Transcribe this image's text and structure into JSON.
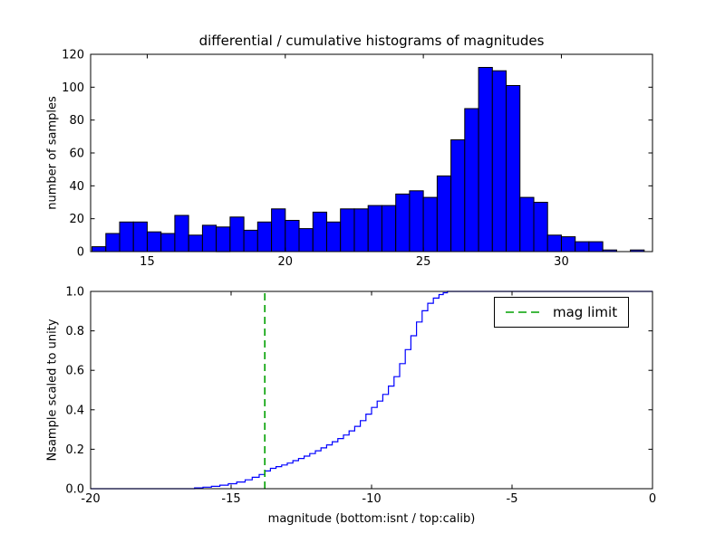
{
  "figure": {
    "title": "differential / cumulative histograms of magnitudes",
    "background": "#ffffff"
  },
  "chart_data": [
    {
      "type": "bar",
      "name": "differential-histogram",
      "ylabel": "number of samples",
      "bar_color": "#0000ff",
      "bar_edge_color": "#000000",
      "xlim": [
        12.95,
        33.3
      ],
      "ylim": [
        0,
        120
      ],
      "xticks": [
        15,
        20,
        25,
        30
      ],
      "xtick_labels": [
        "15",
        "20",
        "25",
        "30"
      ],
      "yticks": [
        0,
        20,
        40,
        60,
        80,
        100,
        120
      ],
      "ytick_labels": [
        "0",
        "20",
        "40",
        "60",
        "80",
        "100",
        "120"
      ],
      "bin_start": 13.0,
      "bin_width": 0.5,
      "values": [
        3,
        11,
        18,
        18,
        12,
        11,
        22,
        10,
        16,
        15,
        21,
        13,
        18,
        26,
        19,
        14,
        24,
        18,
        26,
        26,
        28,
        28,
        35,
        37,
        33,
        46,
        68,
        87,
        112,
        110,
        101,
        33,
        30,
        10,
        9,
        6,
        6,
        1,
        0,
        1
      ]
    },
    {
      "type": "line",
      "name": "cumulative-histogram",
      "ylabel": "Nsample scaled to unity",
      "xlabel": "magnitude (bottom:isnt / top:calib)",
      "line_color": "#0000ff",
      "step": true,
      "xlim": [
        -20,
        0
      ],
      "ylim": [
        0,
        1
      ],
      "xticks": [
        -20,
        -15,
        -10,
        -5,
        0
      ],
      "xtick_labels": [
        "-20",
        "-15",
        "-10",
        "-5",
        "0"
      ],
      "yticks": [
        0,
        0.2,
        0.4,
        0.6,
        0.8,
        1.0
      ],
      "ytick_labels": [
        "0.0",
        "0.2",
        "0.4",
        "0.6",
        "0.8",
        "1.0"
      ],
      "points": [
        [
          -20,
          0
        ],
        [
          -16.6,
          0
        ],
        [
          -16.3,
          0.004
        ],
        [
          -16.0,
          0.008
        ],
        [
          -15.7,
          0.012
        ],
        [
          -15.4,
          0.018
        ],
        [
          -15.1,
          0.025
        ],
        [
          -14.8,
          0.034
        ],
        [
          -14.5,
          0.045
        ],
        [
          -14.25,
          0.058
        ],
        [
          -14.0,
          0.072
        ],
        [
          -13.8,
          0.09
        ],
        [
          -13.6,
          0.103
        ],
        [
          -13.4,
          0.112
        ],
        [
          -13.2,
          0.12
        ],
        [
          -13.0,
          0.13
        ],
        [
          -12.8,
          0.142
        ],
        [
          -12.6,
          0.153
        ],
        [
          -12.4,
          0.165
        ],
        [
          -12.2,
          0.178
        ],
        [
          -12.0,
          0.192
        ],
        [
          -11.8,
          0.207
        ],
        [
          -11.6,
          0.222
        ],
        [
          -11.4,
          0.238
        ],
        [
          -11.2,
          0.254
        ],
        [
          -11.0,
          0.272
        ],
        [
          -10.8,
          0.293
        ],
        [
          -10.6,
          0.316
        ],
        [
          -10.4,
          0.345
        ],
        [
          -10.2,
          0.378
        ],
        [
          -10.0,
          0.412
        ],
        [
          -9.8,
          0.444
        ],
        [
          -9.6,
          0.478
        ],
        [
          -9.4,
          0.52
        ],
        [
          -9.2,
          0.568
        ],
        [
          -9.0,
          0.634
        ],
        [
          -8.8,
          0.705
        ],
        [
          -8.6,
          0.775
        ],
        [
          -8.4,
          0.845
        ],
        [
          -8.2,
          0.902
        ],
        [
          -8.0,
          0.94
        ],
        [
          -7.8,
          0.966
        ],
        [
          -7.6,
          0.984
        ],
        [
          -7.45,
          0.993
        ],
        [
          -7.3,
          1.0
        ],
        [
          0,
          1.0
        ]
      ],
      "vline": {
        "x": -13.8,
        "color": "#00a000",
        "style": "dashed"
      },
      "legend": {
        "label": "mag limit",
        "position": "upper right"
      }
    }
  ]
}
